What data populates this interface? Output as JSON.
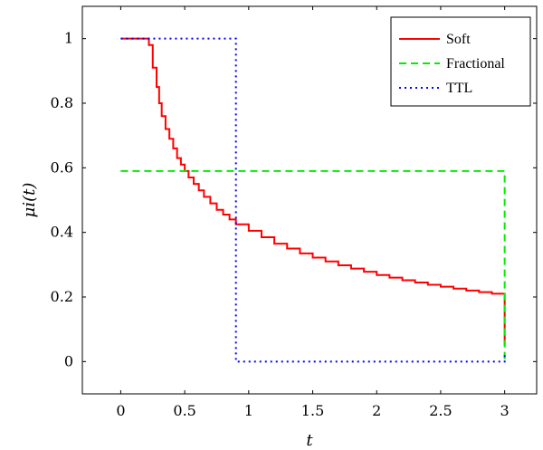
{
  "chart_data": {
    "type": "line",
    "xlabel": "t",
    "ylabel": "μi(t)",
    "xlim": [
      -0.3,
      3.25
    ],
    "ylim": [
      -0.1,
      1.1
    ],
    "xticks": [
      0,
      0.5,
      1,
      1.5,
      2,
      2.5,
      3
    ],
    "xtick_labels": [
      "0",
      "0.5",
      "1",
      "1.5",
      "2",
      "2.5",
      "3"
    ],
    "yticks": [
      0,
      0.2,
      0.4,
      0.6,
      0.8,
      1
    ],
    "ytick_labels": [
      "0",
      "0.2",
      "0.4",
      "0.6",
      "0.8",
      "1"
    ],
    "legend_position": "top-right",
    "series": [
      {
        "name": "Soft",
        "color": "#ff0000",
        "style": "solid",
        "step": true,
        "x": [
          0,
          0.22,
          0.25,
          0.28,
          0.3,
          0.32,
          0.35,
          0.38,
          0.41,
          0.44,
          0.47,
          0.5,
          0.53,
          0.57,
          0.61,
          0.65,
          0.7,
          0.75,
          0.8,
          0.85,
          0.9,
          1.0,
          1.1,
          1.2,
          1.3,
          1.4,
          1.5,
          1.6,
          1.7,
          1.8,
          1.9,
          2.0,
          2.1,
          2.2,
          2.3,
          2.4,
          2.5,
          2.6,
          2.7,
          2.8,
          2.9,
          3.0,
          3.0
        ],
        "y": [
          1.0,
          0.98,
          0.91,
          0.85,
          0.8,
          0.76,
          0.72,
          0.69,
          0.66,
          0.63,
          0.61,
          0.59,
          0.57,
          0.55,
          0.53,
          0.51,
          0.49,
          0.47,
          0.455,
          0.44,
          0.425,
          0.405,
          0.385,
          0.365,
          0.35,
          0.335,
          0.322,
          0.31,
          0.298,
          0.288,
          0.278,
          0.268,
          0.26,
          0.252,
          0.245,
          0.238,
          0.232,
          0.226,
          0.22,
          0.215,
          0.21,
          0.205,
          0.05
        ]
      },
      {
        "name": "Fractional",
        "color": "#00ee00",
        "style": "dashed",
        "step": false,
        "x": [
          0,
          3,
          3
        ],
        "y": [
          0.59,
          0.59,
          0.0
        ]
      },
      {
        "name": "TTL",
        "color": "#0000ff",
        "style": "dotted",
        "step": false,
        "x": [
          0,
          0.9,
          0.9,
          3,
          3
        ],
        "y": [
          1.0,
          1.0,
          0.0,
          0.0,
          0.02
        ]
      }
    ]
  }
}
